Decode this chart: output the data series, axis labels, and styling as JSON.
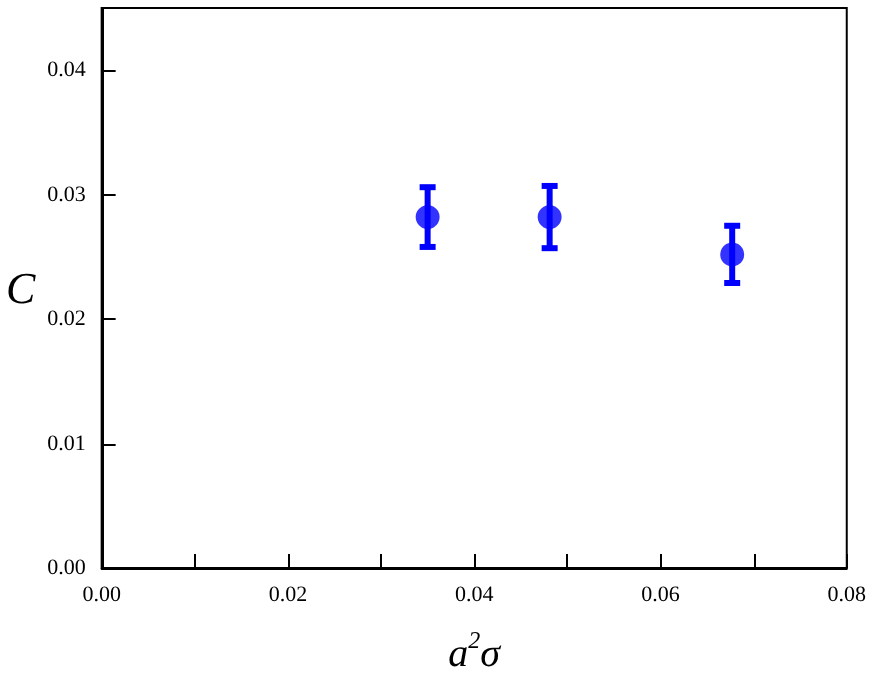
{
  "chart_data": {
    "type": "scatter",
    "xlabel": "a$^{2}$σ",
    "ylabel": "C",
    "x": [
      0.035,
      0.0481,
      0.0677
    ],
    "series": [
      {
        "color": "#0000ff",
        "values": [
          0.0282,
          0.0282,
          0.0252
        ],
        "errors": [
          0.0024,
          0.0025,
          0.0023
        ]
      }
    ],
    "marker": "circle",
    "xlim": [
      0,
      0.08
    ],
    "xticks": [
      {
        "value": 0,
        "label": "0.00"
      },
      {
        "value": 0.01,
        "label": null
      },
      {
        "value": 0.02,
        "label": "0.02"
      },
      {
        "value": 0.03,
        "label": null
      },
      {
        "value": 0.04,
        "label": "0.04"
      },
      {
        "value": 0.05,
        "label": null
      },
      {
        "value": 0.06,
        "label": "0.06"
      },
      {
        "value": 0.07,
        "label": null
      },
      {
        "value": 0.08,
        "label": "0.08"
      }
    ],
    "ylim": [
      0,
      0.045
    ],
    "yticks": [
      {
        "value": 0,
        "label": "0.00"
      },
      {
        "value": 0.01,
        "label": "0.01"
      },
      {
        "value": 0.02,
        "label": "0.02"
      },
      {
        "value": 0.03,
        "label": "0.03"
      },
      {
        "value": 0.04,
        "label": "0.04"
      }
    ],
    "grid": false
  }
}
